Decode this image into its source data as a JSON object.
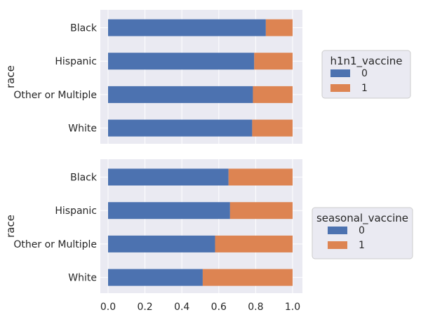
{
  "colors": {
    "series0": "#4c72b0",
    "series1": "#dd8452",
    "plot_bg": "#eaeaf2",
    "grid": "#ffffff"
  },
  "chart_data": [
    {
      "type": "bar",
      "orientation": "horizontal",
      "stacked": true,
      "categories": [
        "Black",
        "Hispanic",
        "Other or Multiple",
        "White"
      ],
      "ylabel": "race",
      "xlim": [
        0.0,
        1.0
      ],
      "xticks": [
        "0.0",
        "0.2",
        "0.4",
        "0.6",
        "0.8",
        "1.0"
      ],
      "show_xticks": false,
      "legend": {
        "title": "h1n1_vaccine",
        "position": "right"
      },
      "series": [
        {
          "name": "0",
          "values": [
            0.855,
            0.792,
            0.785,
            0.781
          ]
        },
        {
          "name": "1",
          "values": [
            0.145,
            0.208,
            0.215,
            0.219
          ]
        }
      ]
    },
    {
      "type": "bar",
      "orientation": "horizontal",
      "stacked": true,
      "categories": [
        "Black",
        "Hispanic",
        "Other or Multiple",
        "White"
      ],
      "ylabel": "race",
      "xlim": [
        0.0,
        1.0
      ],
      "xticks": [
        "0.0",
        "0.2",
        "0.4",
        "0.6",
        "0.8",
        "1.0"
      ],
      "show_xticks": true,
      "legend": {
        "title": "seasonal_vaccine",
        "position": "right"
      },
      "series": [
        {
          "name": "0",
          "values": [
            0.653,
            0.661,
            0.58,
            0.513
          ]
        },
        {
          "name": "1",
          "values": [
            0.347,
            0.339,
            0.42,
            0.487
          ]
        }
      ]
    }
  ]
}
